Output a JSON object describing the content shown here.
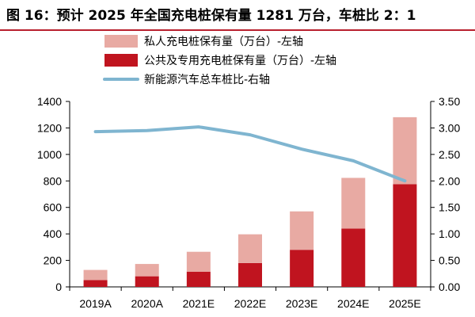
{
  "title": "图 16：预计 2025 年全国充电桩保有量 1281 万台，车桩比 2：1",
  "colors": {
    "private": "#e8aaa3",
    "public": "#c0141f",
    "ratio": "#7fb5d0",
    "title_rule": "#b8202e"
  },
  "chart_data": {
    "type": "bar",
    "stacked": true,
    "categories": [
      "2019A",
      "2020A",
      "2021E",
      "2022E",
      "2023E",
      "2024E",
      "2025E"
    ],
    "series": [
      {
        "name": "公共及专用充电桩保有量（万台）-左轴",
        "axis": "left",
        "type": "bar",
        "values": [
          52,
          80,
          115,
          180,
          280,
          440,
          775
        ]
      },
      {
        "name": "私人充电桩保有量（万台）-左轴",
        "axis": "left",
        "type": "bar",
        "values": [
          76,
          93,
          150,
          217,
          290,
          383,
          506
        ]
      },
      {
        "name": "新能源汽车总车桩比-右轴",
        "axis": "right",
        "type": "line",
        "values": [
          2.93,
          2.95,
          3.02,
          2.87,
          2.6,
          2.38,
          2.0
        ]
      }
    ],
    "legend_order": [
      1,
      0,
      2
    ],
    "left_axis": {
      "min": 0,
      "max": 1400,
      "ticks": [
        "0",
        "200",
        "400",
        "600",
        "800",
        "1000",
        "1200",
        "1400"
      ]
    },
    "right_axis": {
      "min": 0,
      "max": 3.5,
      "ticks": [
        "0.00",
        "0.50",
        "1.00",
        "1.50",
        "2.00",
        "2.50",
        "3.00",
        "3.50"
      ]
    },
    "legend_position": "top-left",
    "grid": false
  }
}
